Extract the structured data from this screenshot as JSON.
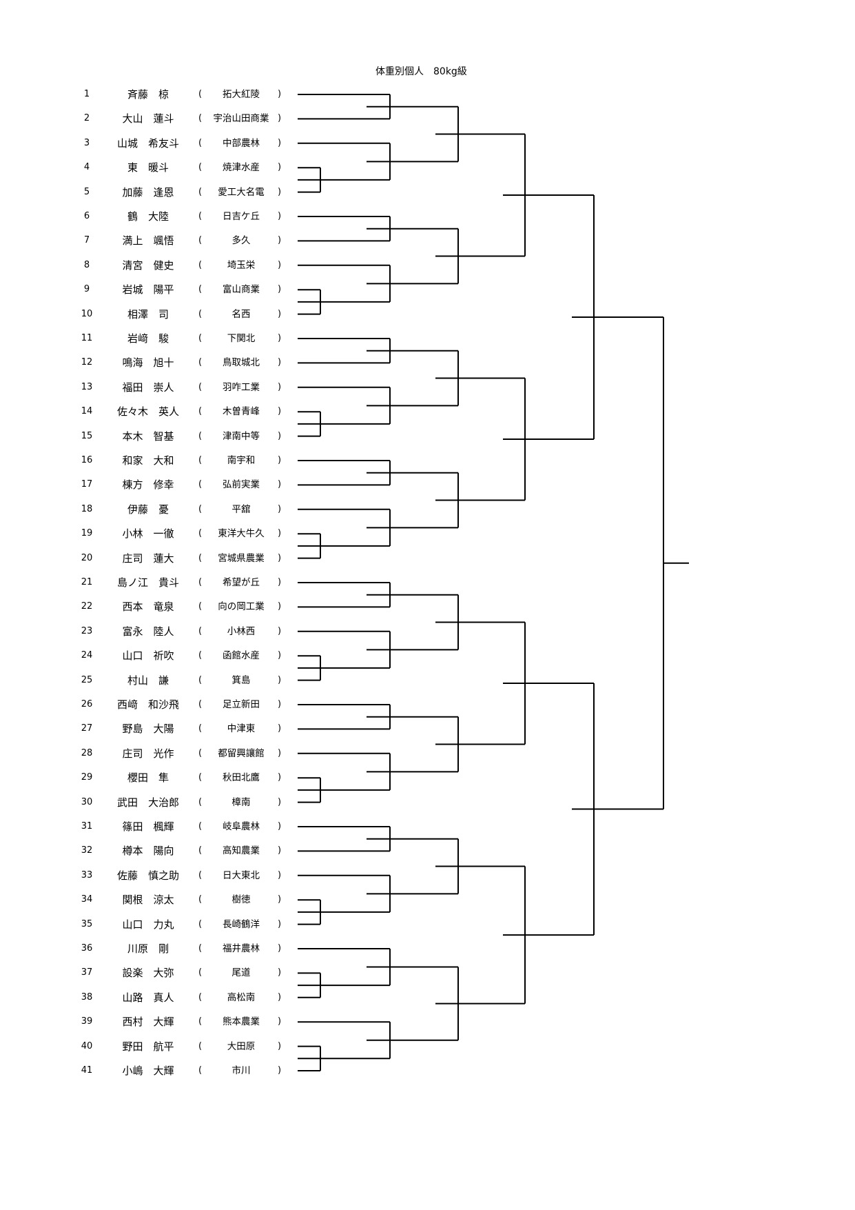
{
  "title": "体重別個人　80kg級",
  "entries": [
    {
      "no": "1",
      "name": "斉藤　椋",
      "school": "拓大紅陵"
    },
    {
      "no": "2",
      "name": "大山　蓮斗",
      "school": "宇治山田商業"
    },
    {
      "no": "3",
      "name": "山城　希友斗",
      "school": "中部農林"
    },
    {
      "no": "4",
      "name": "東　暖斗",
      "school": "焼津水産"
    },
    {
      "no": "5",
      "name": "加藤　逢恩",
      "school": "愛工大名電"
    },
    {
      "no": "6",
      "name": "鶴　大陸",
      "school": "日吉ケ丘"
    },
    {
      "no": "7",
      "name": "満上　颯悟",
      "school": "多久"
    },
    {
      "no": "8",
      "name": "清宮　健史",
      "school": "埼玉栄"
    },
    {
      "no": "9",
      "name": "岩城　陽平",
      "school": "富山商業"
    },
    {
      "no": "10",
      "name": "相澤　司",
      "school": "名西"
    },
    {
      "no": "11",
      "name": "岩﨑　駿",
      "school": "下関北"
    },
    {
      "no": "12",
      "name": "鳴海　旭十",
      "school": "鳥取城北"
    },
    {
      "no": "13",
      "name": "福田　崇人",
      "school": "羽咋工業"
    },
    {
      "no": "14",
      "name": "佐々木　英人",
      "school": "木曽青峰"
    },
    {
      "no": "15",
      "name": "本木　智基",
      "school": "津南中等"
    },
    {
      "no": "16",
      "name": "和家　大和",
      "school": "南宇和"
    },
    {
      "no": "17",
      "name": "棟方　修幸",
      "school": "弘前実業"
    },
    {
      "no": "18",
      "name": "伊藤　憂",
      "school": "平舘"
    },
    {
      "no": "19",
      "name": "小林　一徹",
      "school": "東洋大牛久"
    },
    {
      "no": "20",
      "name": "庄司　蓮大",
      "school": "宮城県農業"
    },
    {
      "no": "21",
      "name": "島ノ江　貴斗",
      "school": "希望が丘"
    },
    {
      "no": "22",
      "name": "西本　竜泉",
      "school": "向の岡工業"
    },
    {
      "no": "23",
      "name": "富永　陸人",
      "school": "小林西"
    },
    {
      "no": "24",
      "name": "山口　祈吹",
      "school": "函館水産"
    },
    {
      "no": "25",
      "name": "村山　謙",
      "school": "箕島"
    },
    {
      "no": "26",
      "name": "西﨑　和沙飛",
      "school": "足立新田"
    },
    {
      "no": "27",
      "name": "野島　大陽",
      "school": "中津東"
    },
    {
      "no": "28",
      "name": "庄司　光作",
      "school": "都留興讓館"
    },
    {
      "no": "29",
      "name": "櫻田　隼",
      "school": "秋田北鷹"
    },
    {
      "no": "30",
      "name": "武田　大治郎",
      "school": "樟南"
    },
    {
      "no": "31",
      "name": "篠田　楓輝",
      "school": "岐阜農林"
    },
    {
      "no": "32",
      "name": "樽本　陽向",
      "school": "高知農業"
    },
    {
      "no": "33",
      "name": "佐藤　慎之助",
      "school": "日大東北"
    },
    {
      "no": "34",
      "name": "関根　涼太",
      "school": "樹徳"
    },
    {
      "no": "35",
      "name": "山口　力丸",
      "school": "長崎鶴洋"
    },
    {
      "no": "36",
      "name": "川原　剛",
      "school": "福井農林"
    },
    {
      "no": "37",
      "name": "設楽　大弥",
      "school": "尾道"
    },
    {
      "no": "38",
      "name": "山路　真人",
      "school": "高松南"
    },
    {
      "no": "39",
      "name": "西村　大輝",
      "school": "熊本農業"
    },
    {
      "no": "40",
      "name": "野田　航平",
      "school": "大田原"
    },
    {
      "no": "41",
      "name": "小嶋　大輝",
      "school": "市川"
    }
  ]
}
